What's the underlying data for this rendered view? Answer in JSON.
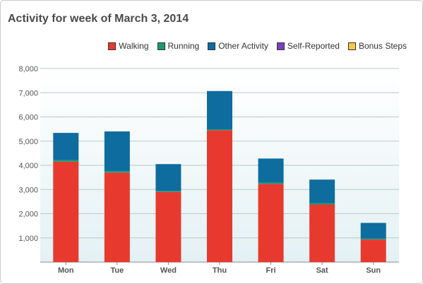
{
  "title": "Activity for week of March 3, 2014",
  "chart_data": {
    "type": "bar",
    "stacked": true,
    "categories": [
      "Mon",
      "Tue",
      "Wed",
      "Thu",
      "Fri",
      "Sat",
      "Sun"
    ],
    "series": [
      {
        "name": "Walking",
        "color": "#e8392f",
        "values": [
          4150,
          3700,
          2900,
          5450,
          3230,
          2380,
          930
        ]
      },
      {
        "name": "Running",
        "color": "#1a9a6e",
        "values": [
          60,
          60,
          40,
          40,
          50,
          60,
          40
        ]
      },
      {
        "name": "Other Activity",
        "color": "#0e6c9e",
        "values": [
          1130,
          1640,
          1110,
          1580,
          1000,
          970,
          650
        ]
      },
      {
        "name": "Self-Reported",
        "color": "#7b3fbf",
        "values": [
          0,
          0,
          0,
          0,
          0,
          0,
          0
        ]
      },
      {
        "name": "Bonus Steps",
        "color": "#f2c84b",
        "values": [
          0,
          0,
          0,
          0,
          0,
          0,
          0
        ]
      }
    ],
    "yticks": [
      "1,000",
      "2,000",
      "3,000",
      "4,000",
      "5,000",
      "6,000",
      "7,000",
      "8,000"
    ],
    "ylim": [
      0,
      8000
    ],
    "grid": true,
    "legend_position": "top-right"
  }
}
